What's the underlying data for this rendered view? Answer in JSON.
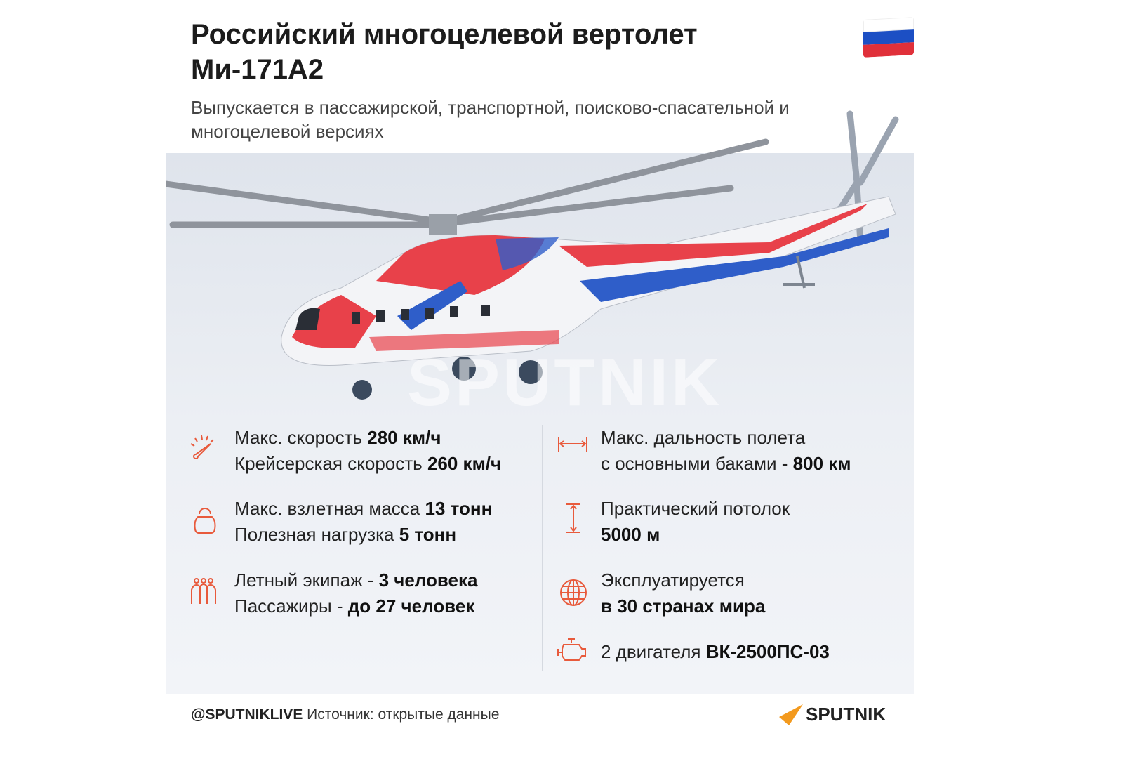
{
  "header": {
    "title": "Российский многоцелевой вертолет Ми-171А2",
    "subtitle": "Выпускается в пассажирской, транспортной, поисково-спасательной и многоцелевой версиях",
    "flag_colors": [
      "#ffffff",
      "#1c4fc4",
      "#e0303a"
    ]
  },
  "illustration": {
    "watermark": "SPUTNIK",
    "colors": {
      "red": "#e8414a",
      "blue": "#2f5ec9",
      "body": "#f3f4f7"
    }
  },
  "specs": {
    "left": [
      {
        "icon": "speedometer-icon",
        "line1": "Макс. скорость ",
        "value1": "280 км/ч",
        "line2": "Крейсерская скорость ",
        "value2": "260 км/ч"
      },
      {
        "icon": "kettlebell-icon",
        "line1": "Макс. взлетная масса ",
        "value1": "13 тонн",
        "line2": "Полезная нагрузка ",
        "value2": "5 тонн"
      },
      {
        "icon": "people-icon",
        "line1": "Летный экипаж - ",
        "value1": "3 человека",
        "line2": "Пассажиры - ",
        "value2": "до 27 человек"
      }
    ],
    "right": [
      {
        "icon": "range-arrow-icon",
        "line1": "Макс. дальность полета",
        "value1": "",
        "line2": "с основными баками - ",
        "value2": "800 км"
      },
      {
        "icon": "altitude-arrow-icon",
        "line1": "Практический потолок",
        "value1": "",
        "line2": "",
        "value2": "5000 м"
      },
      {
        "icon": "globe-icon",
        "line1": "Эксплуатируется",
        "value1": "",
        "line2": "",
        "value2": "в 30 странах мира"
      },
      {
        "icon": "engine-icon",
        "line1": "2 двигателя ",
        "value1": "ВК-2500ПС-03"
      }
    ],
    "accent": "#e85a3c"
  },
  "footer": {
    "handle": "@SPUTNIKLIVE",
    "source": " Источник: открытые данные",
    "logo": "SPUTNIK",
    "logo_color": "#f39a1e"
  }
}
